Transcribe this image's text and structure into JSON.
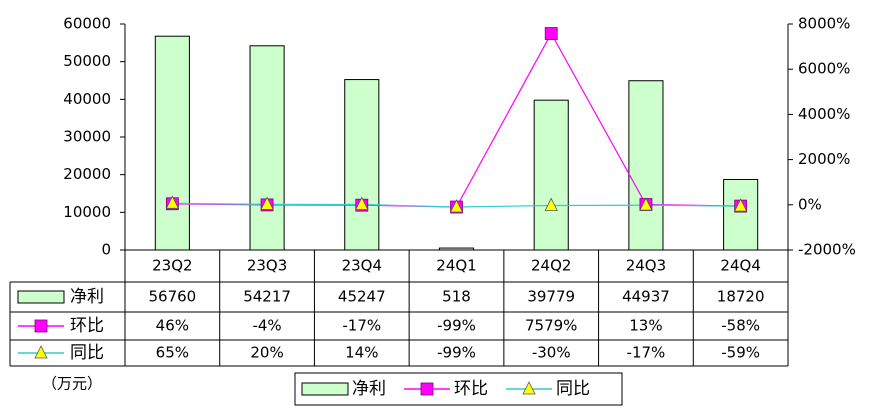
{
  "chart_data": {
    "type": "bar-line",
    "unit_label": "（万元）",
    "categories": [
      "23Q2",
      "23Q3",
      "23Q4",
      "24Q1",
      "24Q2",
      "24Q3",
      "24Q4"
    ],
    "series": [
      {
        "name": "净利",
        "type": "bar",
        "color": "#ccffcc",
        "values": [
          56760,
          54217,
          45247,
          518,
          39779,
          44937,
          18720
        ]
      },
      {
        "name": "环比",
        "type": "line",
        "axis": "y2",
        "color": "#ff00ff",
        "marker": "square",
        "values": [
          46,
          -4,
          -17,
          -99,
          7579,
          13,
          -58
        ],
        "value_labels": [
          "46%",
          "-4%",
          "-17%",
          "-99%",
          "7579%",
          "13%",
          "-58%"
        ]
      },
      {
        "name": "同比",
        "type": "line",
        "axis": "y2",
        "color": "#33cccc",
        "marker": "triangle",
        "marker_color": "#ffff00",
        "values": [
          65,
          20,
          14,
          -99,
          -30,
          -17,
          -59
        ],
        "value_labels": [
          "65%",
          "20%",
          "14%",
          "-99%",
          "-30%",
          "-17%",
          "-59%"
        ]
      }
    ],
    "ylim": [
      0,
      60000
    ],
    "yticks": [
      0,
      10000,
      20000,
      30000,
      40000,
      50000,
      60000
    ],
    "y2lim": [
      -2000,
      8000
    ],
    "y2ticks": [
      {
        "value": -2000,
        "label": "-2000%"
      },
      {
        "value": 0,
        "label": "0%"
      },
      {
        "value": 2000,
        "label": "2000%"
      },
      {
        "value": 4000,
        "label": "4000%"
      },
      {
        "value": 6000,
        "label": "6000%"
      },
      {
        "value": 8000,
        "label": "8000%"
      }
    ],
    "grid": false,
    "legend": "bottom"
  }
}
